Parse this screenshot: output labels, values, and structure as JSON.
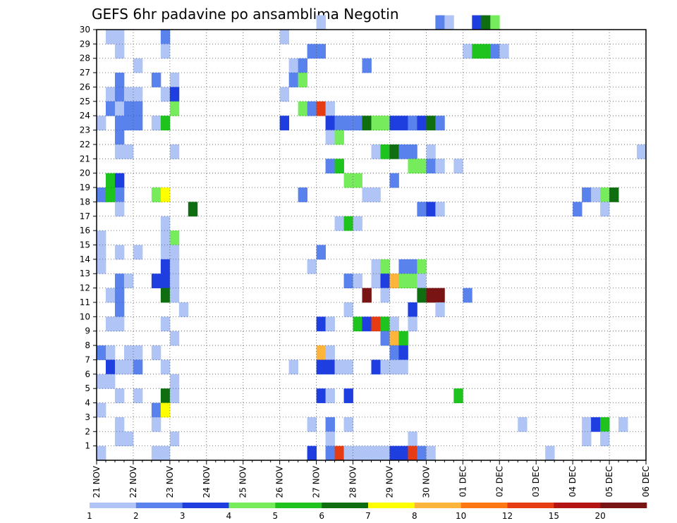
{
  "chart_data": {
    "type": "heatmap",
    "title": "GEFS 6hr padavine po ansamblima Negotin",
    "x_tick_labels": [
      "21 NOV",
      "22 NOV",
      "23 NOV",
      "24 NOV",
      "25 NOV",
      "26 NOV",
      "27 NOV",
      "28 NOV",
      "29 NOV",
      "30 NOV",
      "01 DEC",
      "02 DEC",
      "03 DEC",
      "04 DEC",
      "05 DEC",
      "06 DEC"
    ],
    "y_tick_labels": [
      "1",
      "2",
      "3",
      "4",
      "5",
      "6",
      "7",
      "8",
      "9",
      "10",
      "11",
      "12",
      "13",
      "14",
      "15",
      "16",
      "17",
      "18",
      "19",
      "20",
      "21",
      "22",
      "23",
      "24",
      "25",
      "26",
      "27",
      "28",
      "29",
      "30"
    ],
    "members_range": [
      0,
      30
    ],
    "steps_per_day": 4,
    "grid": true,
    "colorbar": {
      "levels": [
        "1",
        "2",
        "3",
        "4",
        "5",
        "6",
        "7",
        "8",
        "10",
        "12",
        "15",
        "20"
      ],
      "colors": [
        "#b0c4f5",
        "#5a82ec",
        "#1e3ee0",
        "#76ec5c",
        "#1ec31e",
        "#0f6e0f",
        "#ffff00",
        "#ffb43c",
        "#ff7814",
        "#e63c14",
        "#b41414",
        "#781414"
      ]
    },
    "cells": [
      [
        30,
        24,
        1
      ],
      [
        30,
        37,
        2
      ],
      [
        30,
        38,
        1
      ],
      [
        30,
        41,
        3
      ],
      [
        30,
        42,
        6
      ],
      [
        30,
        43,
        4
      ],
      [
        29,
        1,
        1
      ],
      [
        29,
        2,
        1
      ],
      [
        29,
        7,
        2
      ],
      [
        29,
        20,
        1
      ],
      [
        28,
        2,
        1
      ],
      [
        28,
        7,
        1
      ],
      [
        28,
        23,
        2
      ],
      [
        28,
        24,
        2
      ],
      [
        28,
        40,
        1
      ],
      [
        28,
        41,
        5
      ],
      [
        28,
        42,
        5
      ],
      [
        28,
        43,
        2
      ],
      [
        28,
        44,
        1
      ],
      [
        27,
        4,
        1
      ],
      [
        27,
        21,
        1
      ],
      [
        27,
        22,
        2
      ],
      [
        27,
        29,
        2
      ],
      [
        26,
        2,
        2
      ],
      [
        26,
        6,
        2
      ],
      [
        26,
        8,
        1
      ],
      [
        26,
        21,
        2
      ],
      [
        26,
        22,
        4
      ],
      [
        25,
        1,
        1
      ],
      [
        25,
        2,
        2
      ],
      [
        25,
        3,
        1
      ],
      [
        25,
        4,
        1
      ],
      [
        25,
        7,
        1
      ],
      [
        25,
        8,
        3
      ],
      [
        25,
        20,
        1
      ],
      [
        24,
        1,
        2
      ],
      [
        24,
        2,
        1
      ],
      [
        24,
        3,
        2
      ],
      [
        24,
        4,
        2
      ],
      [
        24,
        8,
        4
      ],
      [
        24,
        22,
        4
      ],
      [
        24,
        23,
        2
      ],
      [
        24,
        24,
        10
      ],
      [
        24,
        25,
        1
      ],
      [
        23,
        0,
        1
      ],
      [
        23,
        2,
        2
      ],
      [
        23,
        3,
        2
      ],
      [
        23,
        4,
        2
      ],
      [
        23,
        6,
        1
      ],
      [
        23,
        7,
        5
      ],
      [
        23,
        20,
        3
      ],
      [
        23,
        25,
        3
      ],
      [
        23,
        26,
        2
      ],
      [
        23,
        27,
        2
      ],
      [
        23,
        28,
        2
      ],
      [
        23,
        29,
        6
      ],
      [
        23,
        30,
        4
      ],
      [
        23,
        31,
        4
      ],
      [
        23,
        32,
        3
      ],
      [
        23,
        33,
        3
      ],
      [
        23,
        34,
        2
      ],
      [
        23,
        35,
        3
      ],
      [
        23,
        36,
        6
      ],
      [
        23,
        37,
        2
      ],
      [
        22,
        2,
        2
      ],
      [
        22,
        25,
        1
      ],
      [
        22,
        26,
        4
      ],
      [
        21,
        2,
        1
      ],
      [
        21,
        3,
        1
      ],
      [
        21,
        8,
        1
      ],
      [
        21,
        30,
        1
      ],
      [
        21,
        31,
        5
      ],
      [
        21,
        32,
        6
      ],
      [
        21,
        33,
        2
      ],
      [
        21,
        34,
        2
      ],
      [
        21,
        36,
        1
      ],
      [
        21,
        59,
        1
      ],
      [
        20,
        25,
        2
      ],
      [
        20,
        26,
        5
      ],
      [
        20,
        34,
        4
      ],
      [
        20,
        35,
        4
      ],
      [
        20,
        36,
        2
      ],
      [
        20,
        37,
        1
      ],
      [
        20,
        39,
        1
      ],
      [
        19,
        1,
        5
      ],
      [
        19,
        2,
        3
      ],
      [
        19,
        27,
        4
      ],
      [
        19,
        28,
        4
      ],
      [
        19,
        32,
        2
      ],
      [
        18,
        0,
        2
      ],
      [
        18,
        1,
        5
      ],
      [
        18,
        2,
        2
      ],
      [
        18,
        6,
        4
      ],
      [
        18,
        7,
        7
      ],
      [
        18,
        22,
        2
      ],
      [
        18,
        29,
        1
      ],
      [
        18,
        30,
        1
      ],
      [
        18,
        53,
        2
      ],
      [
        18,
        54,
        1
      ],
      [
        18,
        55,
        4
      ],
      [
        18,
        56,
        6
      ],
      [
        17,
        2,
        1
      ],
      [
        17,
        10,
        6
      ],
      [
        17,
        35,
        2
      ],
      [
        17,
        36,
        3
      ],
      [
        17,
        37,
        1
      ],
      [
        17,
        52,
        2
      ],
      [
        17,
        55,
        1
      ],
      [
        16,
        7,
        1
      ],
      [
        16,
        26,
        1
      ],
      [
        16,
        27,
        5
      ],
      [
        16,
        28,
        1
      ],
      [
        15,
        0,
        1
      ],
      [
        15,
        7,
        1
      ],
      [
        15,
        8,
        4
      ],
      [
        14,
        0,
        1
      ],
      [
        14,
        2,
        1
      ],
      [
        14,
        4,
        1
      ],
      [
        14,
        7,
        1
      ],
      [
        14,
        8,
        1
      ],
      [
        14,
        24,
        2
      ],
      [
        13,
        0,
        1
      ],
      [
        13,
        7,
        3
      ],
      [
        13,
        8,
        1
      ],
      [
        13,
        23,
        1
      ],
      [
        13,
        30,
        1
      ],
      [
        13,
        31,
        4
      ],
      [
        13,
        33,
        2
      ],
      [
        13,
        34,
        2
      ],
      [
        13,
        35,
        4
      ],
      [
        12,
        2,
        2
      ],
      [
        12,
        3,
        1
      ],
      [
        12,
        6,
        3
      ],
      [
        12,
        7,
        3
      ],
      [
        12,
        8,
        1
      ],
      [
        12,
        27,
        2
      ],
      [
        12,
        28,
        1
      ],
      [
        12,
        30,
        1
      ],
      [
        12,
        31,
        3
      ],
      [
        12,
        32,
        8
      ],
      [
        12,
        33,
        4
      ],
      [
        12,
        34,
        4
      ],
      [
        12,
        35,
        1
      ],
      [
        11,
        1,
        1
      ],
      [
        11,
        2,
        2
      ],
      [
        11,
        7,
        6
      ],
      [
        11,
        8,
        1
      ],
      [
        11,
        29,
        12
      ],
      [
        11,
        31,
        1
      ],
      [
        11,
        35,
        6
      ],
      [
        11,
        36,
        12
      ],
      [
        11,
        37,
        12
      ],
      [
        11,
        40,
        2
      ],
      [
        10,
        2,
        2
      ],
      [
        10,
        9,
        1
      ],
      [
        10,
        27,
        1
      ],
      [
        10,
        34,
        3
      ],
      [
        10,
        37,
        1
      ],
      [
        9,
        1,
        1
      ],
      [
        9,
        2,
        1
      ],
      [
        9,
        7,
        1
      ],
      [
        9,
        24,
        3
      ],
      [
        9,
        25,
        1
      ],
      [
        9,
        28,
        5
      ],
      [
        9,
        29,
        3
      ],
      [
        9,
        30,
        10
      ],
      [
        9,
        31,
        5
      ],
      [
        9,
        32,
        1
      ],
      [
        9,
        34,
        1
      ],
      [
        8,
        8,
        1
      ],
      [
        8,
        31,
        2
      ],
      [
        8,
        32,
        8
      ],
      [
        8,
        33,
        5
      ],
      [
        7,
        0,
        2
      ],
      [
        7,
        1,
        1
      ],
      [
        7,
        3,
        1
      ],
      [
        7,
        4,
        1
      ],
      [
        7,
        6,
        1
      ],
      [
        7,
        24,
        8
      ],
      [
        7,
        25,
        1
      ],
      [
        7,
        32,
        2
      ],
      [
        7,
        33,
        3
      ],
      [
        6,
        1,
        3
      ],
      [
        6,
        2,
        1
      ],
      [
        6,
        3,
        1
      ],
      [
        6,
        4,
        2
      ],
      [
        6,
        7,
        1
      ],
      [
        6,
        21,
        1
      ],
      [
        6,
        24,
        3
      ],
      [
        6,
        25,
        3
      ],
      [
        6,
        26,
        1
      ],
      [
        6,
        27,
        1
      ],
      [
        6,
        30,
        3
      ],
      [
        6,
        31,
        1
      ],
      [
        6,
        32,
        1
      ],
      [
        6,
        33,
        1
      ],
      [
        5,
        0,
        1
      ],
      [
        5,
        1,
        1
      ],
      [
        5,
        8,
        1
      ],
      [
        4,
        2,
        1
      ],
      [
        4,
        4,
        1
      ],
      [
        4,
        7,
        6
      ],
      [
        4,
        8,
        1
      ],
      [
        4,
        24,
        3
      ],
      [
        4,
        25,
        1
      ],
      [
        4,
        27,
        3
      ],
      [
        4,
        39,
        5
      ],
      [
        3,
        0,
        1
      ],
      [
        3,
        6,
        2
      ],
      [
        3,
        7,
        7
      ],
      [
        2,
        2,
        1
      ],
      [
        2,
        6,
        1
      ],
      [
        2,
        23,
        1
      ],
      [
        2,
        25,
        2
      ],
      [
        2,
        27,
        1
      ],
      [
        2,
        46,
        1
      ],
      [
        2,
        53,
        1
      ],
      [
        2,
        54,
        3
      ],
      [
        2,
        55,
        5
      ],
      [
        2,
        57,
        1
      ],
      [
        1,
        2,
        1
      ],
      [
        1,
        3,
        1
      ],
      [
        1,
        8,
        1
      ],
      [
        1,
        25,
        1
      ],
      [
        1,
        34,
        1
      ],
      [
        1,
        53,
        1
      ],
      [
        1,
        55,
        1
      ],
      [
        0,
        0,
        1
      ],
      [
        0,
        6,
        1
      ],
      [
        0,
        7,
        1
      ],
      [
        0,
        23,
        3
      ],
      [
        0,
        25,
        2
      ],
      [
        0,
        26,
        10
      ],
      [
        0,
        27,
        1
      ],
      [
        0,
        28,
        1
      ],
      [
        0,
        29,
        1
      ],
      [
        0,
        30,
        1
      ],
      [
        0,
        31,
        1
      ],
      [
        0,
        32,
        3
      ],
      [
        0,
        33,
        3
      ],
      [
        0,
        34,
        10
      ],
      [
        0,
        35,
        2
      ],
      [
        0,
        36,
        1
      ],
      [
        0,
        49,
        1
      ]
    ]
  }
}
